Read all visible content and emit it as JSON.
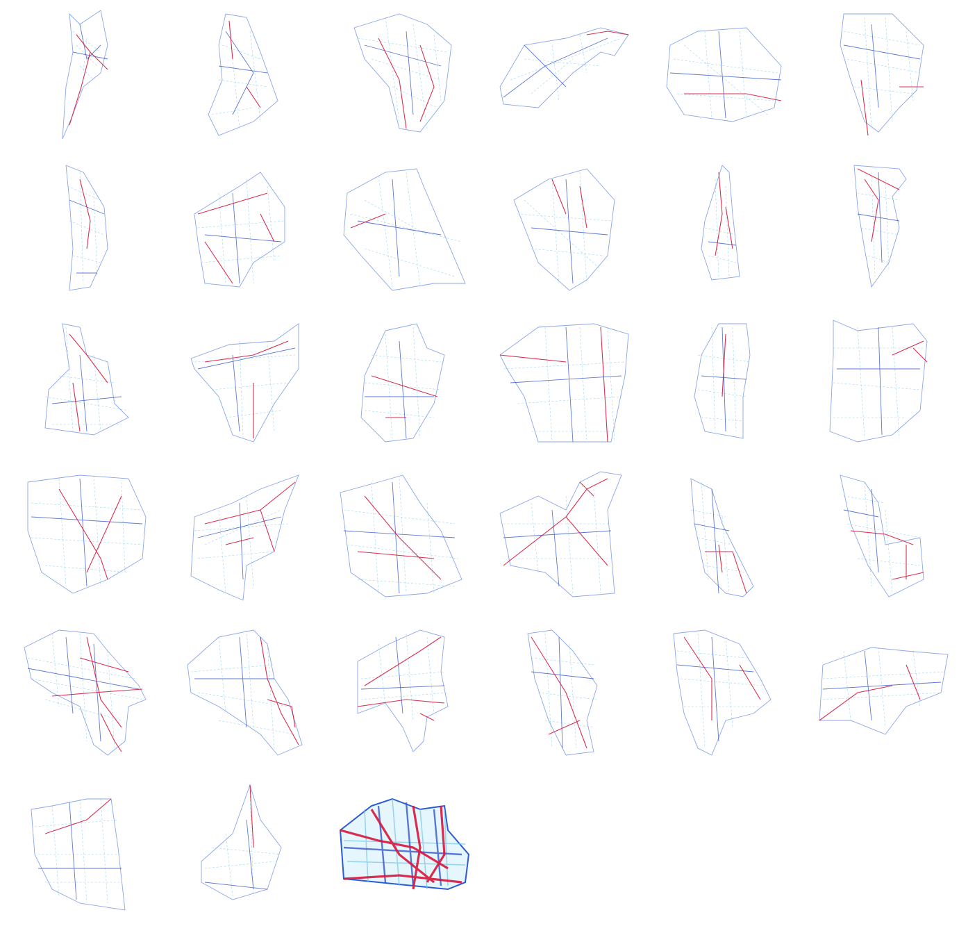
{
  "colors": {
    "background": "#ffffff",
    "road_light": "#7cc6e6",
    "road_medium": "#3556c8",
    "road_major": "#d6173c"
  },
  "panel_count": 33,
  "columns": 6
}
